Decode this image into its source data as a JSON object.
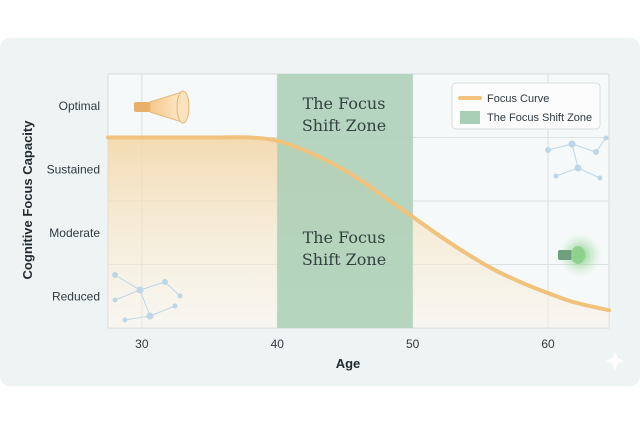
{
  "chart_data": {
    "type": "area",
    "title": "",
    "xlabel": "Age",
    "ylabel": "Cognitive Focus Capacity",
    "xlim": [
      27.5,
      64.5
    ],
    "ylim": [
      0.5,
      4.5
    ],
    "x_ticks": [
      30,
      40,
      50,
      60
    ],
    "y_categories": [
      "Reduced",
      "Moderate",
      "Sustained",
      "Optimal"
    ],
    "grid": true,
    "legend_position": "top-right",
    "series": [
      {
        "name": "Focus Curve",
        "color": "#f0c27b",
        "x": [
          27.5,
          30,
          35,
          38,
          40,
          42,
          44,
          46,
          48,
          50,
          52,
          54,
          56,
          58,
          60,
          62,
          64.5
        ],
        "y": [
          3.5,
          3.5,
          3.5,
          3.5,
          3.45,
          3.3,
          3.1,
          2.85,
          2.55,
          2.25,
          1.95,
          1.67,
          1.42,
          1.22,
          1.05,
          0.9,
          0.78
        ]
      }
    ],
    "shaded_region": {
      "name": "The Focus Shift Zone",
      "x_start": 40,
      "x_end": 50,
      "color": "#a9cfb6",
      "labels": [
        "The Focus Shift Zone",
        "The Focus Shift Zone"
      ]
    },
    "zone_label_lines": [
      "The Focus",
      "Shift Zone"
    ],
    "icons": [
      "flashlight-beam-icon",
      "glowing-lamp-icon",
      "network-nodes-icon"
    ]
  }
}
